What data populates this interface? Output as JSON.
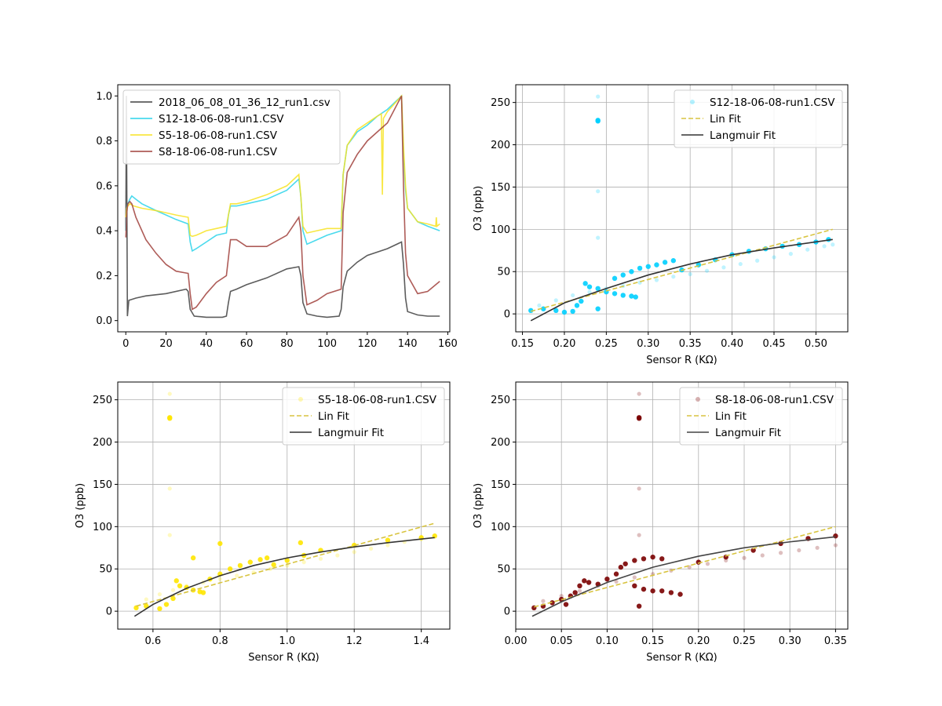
{
  "chart_data": [
    {
      "type": "line",
      "xlabel": "",
      "ylabel": "",
      "xlim": [
        -4,
        161
      ],
      "ylim": [
        -0.05,
        1.05
      ],
      "xticks": [
        0,
        20,
        40,
        60,
        80,
        100,
        120,
        140,
        160
      ],
      "yticks": [
        0.0,
        0.2,
        0.4,
        0.6,
        0.8,
        1.0
      ],
      "grid": false,
      "legend": "top-left",
      "series": [
        {
          "name": "2018_06_08_01_36_12_run1.csv",
          "color": "#404040",
          "x": [
            0,
            0.3,
            0.8,
            1.5,
            5,
            10,
            20,
            30,
            31,
            32,
            34,
            40,
            48,
            50,
            51,
            52,
            55,
            60,
            70,
            80,
            86,
            87,
            88,
            90,
            95,
            100,
            106,
            107,
            108,
            110,
            115,
            120,
            130,
            137,
            138,
            139,
            140,
            145,
            150,
            156
          ],
          "y": [
            0.4,
            1.0,
            0.02,
            0.09,
            0.1,
            0.11,
            0.12,
            0.14,
            0.13,
            0.05,
            0.02,
            0.015,
            0.015,
            0.02,
            0.08,
            0.13,
            0.14,
            0.16,
            0.19,
            0.23,
            0.24,
            0.2,
            0.08,
            0.03,
            0.02,
            0.015,
            0.02,
            0.05,
            0.15,
            0.22,
            0.26,
            0.29,
            0.32,
            0.35,
            0.25,
            0.1,
            0.04,
            0.025,
            0.02,
            0.02
          ]
        },
        {
          "name": "S12-18-06-08-run1.CSV",
          "color": "#2ad4ea",
          "x": [
            0,
            0.5,
            1,
            2,
            3,
            5,
            8,
            15,
            25,
            31,
            32,
            33,
            35,
            40,
            45,
            50,
            51,
            52,
            55,
            60,
            70,
            80,
            86,
            87,
            88,
            90,
            95,
            100,
            107,
            108,
            110,
            115,
            120,
            125,
            130,
            137,
            138,
            139,
            140,
            145,
            150,
            156
          ],
          "y": [
            0.4,
            0.5,
            0.52,
            0.54,
            0.555,
            0.54,
            0.52,
            0.49,
            0.45,
            0.43,
            0.35,
            0.31,
            0.32,
            0.35,
            0.38,
            0.39,
            0.47,
            0.51,
            0.51,
            0.52,
            0.54,
            0.58,
            0.63,
            0.55,
            0.4,
            0.34,
            0.36,
            0.38,
            0.4,
            0.65,
            0.78,
            0.84,
            0.87,
            0.91,
            0.94,
            1.0,
            0.75,
            0.58,
            0.5,
            0.44,
            0.42,
            0.4
          ]
        },
        {
          "name": "S5-18-06-08-run1.CSV",
          "color": "#f7e322",
          "x": [
            0,
            0.5,
            1,
            2,
            4,
            8,
            15,
            25,
            31,
            32,
            33,
            35,
            40,
            45,
            50,
            51,
            52,
            55,
            60,
            70,
            80,
            86,
            87,
            88,
            90,
            95,
            100,
            107,
            108,
            110,
            115,
            120,
            125,
            127,
            127.5,
            128,
            130,
            137,
            138,
            139,
            140,
            145,
            150,
            154,
            154.3,
            154.6,
            156
          ],
          "y": [
            0.46,
            0.5,
            0.51,
            0.52,
            0.51,
            0.5,
            0.49,
            0.47,
            0.46,
            0.38,
            0.375,
            0.38,
            0.4,
            0.41,
            0.42,
            0.47,
            0.52,
            0.52,
            0.53,
            0.56,
            0.6,
            0.65,
            0.55,
            0.42,
            0.39,
            0.4,
            0.41,
            0.41,
            0.65,
            0.78,
            0.85,
            0.88,
            0.91,
            0.92,
            0.56,
            0.9,
            0.93,
            1.0,
            0.78,
            0.6,
            0.5,
            0.44,
            0.43,
            0.42,
            0.46,
            0.42,
            0.43
          ]
        },
        {
          "name": "S8-18-06-08-run1.CSV",
          "color": "#a0403b",
          "x": [
            0,
            0.5,
            1,
            2,
            3,
            5,
            10,
            15,
            20,
            25,
            31,
            32,
            33,
            35,
            40,
            45,
            50,
            51,
            52,
            55,
            60,
            70,
            80,
            86,
            87,
            88,
            90,
            95,
            100,
            107,
            108,
            110,
            115,
            120,
            125,
            130,
            137,
            138,
            139,
            140,
            145,
            150,
            156
          ],
          "y": [
            0.37,
            0.48,
            0.52,
            0.53,
            0.52,
            0.46,
            0.36,
            0.3,
            0.25,
            0.22,
            0.21,
            0.12,
            0.05,
            0.06,
            0.12,
            0.17,
            0.2,
            0.28,
            0.36,
            0.36,
            0.33,
            0.33,
            0.38,
            0.46,
            0.4,
            0.2,
            0.07,
            0.09,
            0.12,
            0.14,
            0.48,
            0.66,
            0.74,
            0.8,
            0.84,
            0.88,
            1.0,
            0.6,
            0.3,
            0.2,
            0.12,
            0.13,
            0.175
          ]
        }
      ]
    },
    {
      "type": "scatter",
      "xlabel": "Sensor R (KΩ)",
      "ylabel": "O3 (ppb)",
      "xlim": [
        0.142,
        0.538
      ],
      "ylim": [
        -21.2,
        271
      ],
      "xticks": [
        0.15,
        0.2,
        0.25,
        0.3,
        0.35,
        0.4,
        0.45,
        0.5
      ],
      "xtick_labels": [
        "0.15",
        "0.20",
        "0.25",
        "0.30",
        "0.35",
        "0.40",
        "0.45",
        "0.50"
      ],
      "yticks": [
        0,
        50,
        100,
        150,
        200,
        250
      ],
      "grid": true,
      "legend": "top-right",
      "scatter_name": "S12-18-06-08-run1.CSV",
      "scatter_color": "#00cfff",
      "lin_fit": {
        "name": "Lin Fit",
        "color": "#d8c440",
        "x": [
          0.16,
          0.52
        ],
        "y": [
          3,
          100
        ]
      },
      "langmuir_fit": {
        "name": "Langmuir Fit",
        "color": "#333333",
        "x": [
          0.16,
          0.2,
          0.25,
          0.3,
          0.35,
          0.4,
          0.45,
          0.52
        ],
        "y": [
          -8,
          13,
          30,
          46,
          59,
          70,
          78,
          88
        ]
      },
      "points_solid": [
        [
          0.16,
          4
        ],
        [
          0.175,
          6
        ],
        [
          0.19,
          4
        ],
        [
          0.2,
          2
        ],
        [
          0.21,
          3
        ],
        [
          0.215,
          10
        ],
        [
          0.22,
          15
        ],
        [
          0.225,
          36
        ],
        [
          0.23,
          32
        ],
        [
          0.24,
          30
        ],
        [
          0.25,
          26
        ],
        [
          0.26,
          24
        ],
        [
          0.27,
          22
        ],
        [
          0.28,
          21
        ],
        [
          0.285,
          20
        ],
        [
          0.26,
          42
        ],
        [
          0.27,
          46
        ],
        [
          0.28,
          50
        ],
        [
          0.29,
          54
        ],
        [
          0.3,
          56
        ],
        [
          0.31,
          58
        ],
        [
          0.32,
          61
        ],
        [
          0.33,
          63
        ],
        [
          0.34,
          52
        ],
        [
          0.36,
          58
        ],
        [
          0.38,
          64
        ],
        [
          0.4,
          70
        ],
        [
          0.42,
          74
        ],
        [
          0.44,
          77
        ],
        [
          0.46,
          80
        ],
        [
          0.48,
          82
        ],
        [
          0.5,
          85
        ],
        [
          0.515,
          88
        ],
        [
          0.24,
          229
        ],
        [
          0.24,
          228
        ],
        [
          0.24,
          6
        ]
      ],
      "points_faint": [
        [
          0.17,
          10
        ],
        [
          0.19,
          16
        ],
        [
          0.21,
          22
        ],
        [
          0.23,
          26
        ],
        [
          0.25,
          30
        ],
        [
          0.27,
          33
        ],
        [
          0.29,
          37
        ],
        [
          0.31,
          40
        ],
        [
          0.33,
          44
        ],
        [
          0.35,
          47
        ],
        [
          0.37,
          51
        ],
        [
          0.39,
          55
        ],
        [
          0.41,
          59
        ],
        [
          0.43,
          63
        ],
        [
          0.45,
          67
        ],
        [
          0.47,
          71
        ],
        [
          0.49,
          76
        ],
        [
          0.51,
          80
        ],
        [
          0.52,
          82
        ],
        [
          0.24,
          257
        ],
        [
          0.24,
          145
        ],
        [
          0.24,
          90
        ]
      ]
    },
    {
      "type": "scatter",
      "xlabel": "Sensor R (KΩ)",
      "ylabel": "O3 (ppb)",
      "xlim": [
        0.495,
        1.485
      ],
      "ylim": [
        -21.2,
        271
      ],
      "xticks": [
        0.6,
        0.8,
        1.0,
        1.2,
        1.4
      ],
      "xtick_labels": [
        "0.6",
        "0.8",
        "1.0",
        "1.2",
        "1.4"
      ],
      "yticks": [
        0,
        50,
        100,
        150,
        200,
        250
      ],
      "grid": true,
      "legend": "top-right",
      "scatter_name": "S5-18-06-08-run1.CSV",
      "scatter_color": "#ffe600",
      "lin_fit": {
        "name": "Lin Fit",
        "color": "#d8c440",
        "x": [
          0.55,
          1.44
        ],
        "y": [
          6,
          104
        ]
      },
      "langmuir_fit": {
        "name": "Langmuir Fit",
        "color": "#333333",
        "x": [
          0.545,
          0.6,
          0.7,
          0.8,
          0.9,
          1.0,
          1.1,
          1.2,
          1.3,
          1.44
        ],
        "y": [
          -6,
          8,
          27,
          42,
          54,
          63,
          70,
          76,
          81,
          87
        ]
      },
      "points_solid": [
        [
          0.55,
          4
        ],
        [
          0.58,
          6
        ],
        [
          0.62,
          3
        ],
        [
          0.64,
          8
        ],
        [
          0.66,
          15
        ],
        [
          0.67,
          36
        ],
        [
          0.68,
          30
        ],
        [
          0.7,
          28
        ],
        [
          0.72,
          25
        ],
        [
          0.74,
          23
        ],
        [
          0.75,
          22
        ],
        [
          0.77,
          38
        ],
        [
          0.8,
          44
        ],
        [
          0.83,
          50
        ],
        [
          0.86,
          54
        ],
        [
          0.89,
          58
        ],
        [
          0.92,
          61
        ],
        [
          0.94,
          63
        ],
        [
          0.96,
          55
        ],
        [
          1.0,
          60
        ],
        [
          1.05,
          66
        ],
        [
          1.1,
          72
        ],
        [
          1.2,
          78
        ],
        [
          1.3,
          84
        ],
        [
          1.4,
          87
        ],
        [
          1.44,
          89
        ],
        [
          0.65,
          229
        ],
        [
          0.65,
          228
        ],
        [
          0.8,
          80
        ],
        [
          1.04,
          81
        ],
        [
          0.72,
          63
        ]
      ],
      "points_faint": [
        [
          0.58,
          14
        ],
        [
          0.62,
          20
        ],
        [
          0.66,
          25
        ],
        [
          0.7,
          30
        ],
        [
          0.75,
          34
        ],
        [
          0.8,
          38
        ],
        [
          0.85,
          42
        ],
        [
          0.9,
          46
        ],
        [
          0.95,
          50
        ],
        [
          1.0,
          54
        ],
        [
          1.05,
          58
        ],
        [
          1.1,
          62
        ],
        [
          1.15,
          66
        ],
        [
          1.2,
          70
        ],
        [
          1.25,
          74
        ],
        [
          1.3,
          78
        ],
        [
          1.35,
          82
        ],
        [
          1.4,
          85
        ],
        [
          0.65,
          257
        ],
        [
          0.65,
          145
        ],
        [
          0.65,
          90
        ]
      ]
    },
    {
      "type": "scatter",
      "xlabel": "Sensor R (KΩ)",
      "ylabel": "O3 (ppb)",
      "xlim": [
        0.0,
        0.3634
      ],
      "ylim": [
        -21.2,
        271
      ],
      "xticks": [
        0.0,
        0.05,
        0.1,
        0.15,
        0.2,
        0.25,
        0.3,
        0.35
      ],
      "xtick_labels": [
        "0.00",
        "0.05",
        "0.10",
        "0.15",
        "0.20",
        "0.25",
        "0.30",
        "0.35"
      ],
      "yticks": [
        0,
        50,
        100,
        150,
        200,
        250
      ],
      "grid": true,
      "legend": "top-right",
      "scatter_name": "S8-18-06-08-run1.CSV",
      "scatter_color": "#7a0000",
      "lin_fit": {
        "name": "Lin Fit",
        "color": "#d8c440",
        "x": [
          0.02,
          0.35
        ],
        "y": [
          5,
          100
        ]
      },
      "langmuir_fit": {
        "name": "Langmuir Fit",
        "color": "#444444",
        "x": [
          0.018,
          0.05,
          0.1,
          0.15,
          0.2,
          0.25,
          0.3,
          0.35
        ],
        "y": [
          -6,
          11,
          34,
          52,
          65,
          75,
          82,
          88
        ]
      },
      "points_solid": [
        [
          0.02,
          4
        ],
        [
          0.03,
          6
        ],
        [
          0.04,
          10
        ],
        [
          0.05,
          14
        ],
        [
          0.055,
          8
        ],
        [
          0.06,
          18
        ],
        [
          0.065,
          22
        ],
        [
          0.07,
          30
        ],
        [
          0.075,
          36
        ],
        [
          0.08,
          34
        ],
        [
          0.09,
          32
        ],
        [
          0.1,
          38
        ],
        [
          0.11,
          44
        ],
        [
          0.115,
          52
        ],
        [
          0.12,
          56
        ],
        [
          0.13,
          60
        ],
        [
          0.14,
          62
        ],
        [
          0.15,
          64
        ],
        [
          0.16,
          62
        ],
        [
          0.13,
          30
        ],
        [
          0.14,
          26
        ],
        [
          0.15,
          24
        ],
        [
          0.16,
          24
        ],
        [
          0.17,
          22
        ],
        [
          0.18,
          20
        ],
        [
          0.135,
          6
        ],
        [
          0.2,
          58
        ],
        [
          0.23,
          64
        ],
        [
          0.26,
          72
        ],
        [
          0.29,
          80
        ],
        [
          0.32,
          86
        ],
        [
          0.35,
          89
        ],
        [
          0.135,
          229
        ],
        [
          0.135,
          228
        ]
      ],
      "points_faint": [
        [
          0.03,
          12
        ],
        [
          0.05,
          18
        ],
        [
          0.07,
          24
        ],
        [
          0.09,
          30
        ],
        [
          0.11,
          35
        ],
        [
          0.13,
          40
        ],
        [
          0.15,
          44
        ],
        [
          0.17,
          48
        ],
        [
          0.19,
          52
        ],
        [
          0.21,
          56
        ],
        [
          0.23,
          60
        ],
        [
          0.25,
          63
        ],
        [
          0.27,
          66
        ],
        [
          0.29,
          69
        ],
        [
          0.31,
          72
        ],
        [
          0.33,
          75
        ],
        [
          0.35,
          78
        ],
        [
          0.135,
          257
        ],
        [
          0.135,
          145
        ],
        [
          0.135,
          90
        ]
      ]
    }
  ]
}
